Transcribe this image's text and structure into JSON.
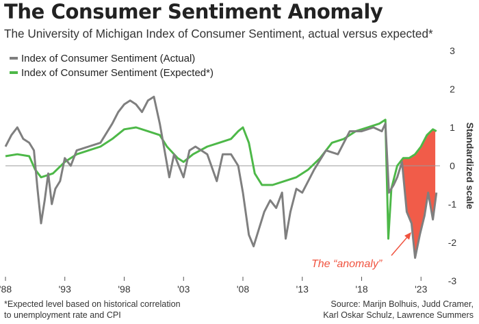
{
  "header": {
    "title": "The Consumer Sentiment Anomaly",
    "subtitle": "The University of Michigan Index of Consumer Sentiment, actual versus expected*"
  },
  "footer": {
    "note_line1": "*Expected level based on historical correlation",
    "note_line2": "to unemployment rate and CPI",
    "source_line1": "Source: Marijn Bolhuis, Judd Cramer,",
    "source_line2": "Karl Oskar Schulz, Lawrence Summers"
  },
  "colors": {
    "actual": "#7f7f7f",
    "expected": "#4db848",
    "anomaly": "#f0533f",
    "zero_line": "#9a9a9a",
    "text": "#222222"
  },
  "chart_data": {
    "type": "line",
    "title": "The Consumer Sentiment Anomaly",
    "subtitle": "The University of Michigan Index of Consumer Sentiment, actual versus expected*",
    "xlabel": "",
    "ylabel": "Standardized scale",
    "x_tick_labels": [
      "'88",
      "'93",
      "'98",
      "'03",
      "'08",
      "'13",
      "'18",
      "'23"
    ],
    "x_tick_years": [
      1988,
      1993,
      1998,
      2003,
      2008,
      2013,
      2018,
      2023
    ],
    "xlim": [
      1988,
      2024.6
    ],
    "ylim": [
      -3,
      3
    ],
    "y_ticks": [
      3,
      2,
      1,
      0,
      -1,
      -2,
      -3
    ],
    "y_axis_side": "right",
    "grid": false,
    "zero_line": true,
    "legend_position": "top-left",
    "annotation": {
      "text": "The “anomaly”",
      "shaded_region": [
        2021.3,
        2024.2
      ]
    },
    "series": [
      {
        "name": "Index of Consumer Sentiment (Actual)",
        "color": "#7f7f7f",
        "points": [
          [
            1988.0,
            0.5
          ],
          [
            1988.5,
            0.8
          ],
          [
            1989.0,
            1.0
          ],
          [
            1989.5,
            0.7
          ],
          [
            1990.0,
            0.6
          ],
          [
            1990.4,
            0.4
          ],
          [
            1990.7,
            -0.6
          ],
          [
            1991.0,
            -1.5
          ],
          [
            1991.3,
            -0.9
          ],
          [
            1991.6,
            -0.2
          ],
          [
            1991.9,
            -1.0
          ],
          [
            1992.2,
            -0.6
          ],
          [
            1992.6,
            -0.4
          ],
          [
            1993.0,
            0.2
          ],
          [
            1993.5,
            0.0
          ],
          [
            1994.0,
            0.4
          ],
          [
            1995.0,
            0.5
          ],
          [
            1996.0,
            0.6
          ],
          [
            1997.0,
            1.1
          ],
          [
            1997.5,
            1.4
          ],
          [
            1998.0,
            1.6
          ],
          [
            1998.5,
            1.7
          ],
          [
            1999.0,
            1.6
          ],
          [
            1999.5,
            1.4
          ],
          [
            2000.0,
            1.7
          ],
          [
            2000.5,
            1.8
          ],
          [
            2001.0,
            1.1
          ],
          [
            2001.4,
            0.4
          ],
          [
            2001.8,
            -0.3
          ],
          [
            2002.2,
            0.3
          ],
          [
            2002.6,
            0.0
          ],
          [
            2003.0,
            -0.3
          ],
          [
            2003.5,
            0.4
          ],
          [
            2004.0,
            0.5
          ],
          [
            2005.0,
            0.3
          ],
          [
            2005.8,
            -0.4
          ],
          [
            2006.3,
            0.3
          ],
          [
            2007.0,
            0.3
          ],
          [
            2007.6,
            0.0
          ],
          [
            2008.0,
            -0.7
          ],
          [
            2008.5,
            -1.8
          ],
          [
            2008.9,
            -2.1
          ],
          [
            2009.3,
            -1.7
          ],
          [
            2009.8,
            -1.2
          ],
          [
            2010.3,
            -0.9
          ],
          [
            2010.8,
            -1.1
          ],
          [
            2011.3,
            -0.7
          ],
          [
            2011.6,
            -1.9
          ],
          [
            2012.0,
            -1.2
          ],
          [
            2012.5,
            -0.6
          ],
          [
            2013.0,
            -0.7
          ],
          [
            2013.5,
            -0.4
          ],
          [
            2014.0,
            -0.1
          ],
          [
            2015.0,
            0.4
          ],
          [
            2016.0,
            0.3
          ],
          [
            2017.0,
            0.9
          ],
          [
            2018.0,
            0.9
          ],
          [
            2019.0,
            1.0
          ],
          [
            2019.7,
            0.9
          ],
          [
            2020.0,
            1.1
          ],
          [
            2020.3,
            -0.7
          ],
          [
            2020.7,
            -0.5
          ],
          [
            2021.0,
            -0.3
          ],
          [
            2021.4,
            0.1
          ],
          [
            2021.8,
            -1.2
          ],
          [
            2022.2,
            -1.5
          ],
          [
            2022.5,
            -2.4
          ],
          [
            2022.9,
            -1.8
          ],
          [
            2023.3,
            -1.3
          ],
          [
            2023.6,
            -0.7
          ],
          [
            2024.0,
            -1.4
          ],
          [
            2024.3,
            -0.7
          ]
        ]
      },
      {
        "name": "Index of Consumer Sentiment (Expected*)",
        "color": "#4db848",
        "points": [
          [
            1988.0,
            0.25
          ],
          [
            1989.0,
            0.3
          ],
          [
            1990.0,
            0.25
          ],
          [
            1990.5,
            -0.1
          ],
          [
            1991.0,
            -0.3
          ],
          [
            1992.0,
            -0.2
          ],
          [
            1993.0,
            0.1
          ],
          [
            1994.0,
            0.3
          ],
          [
            1995.0,
            0.4
          ],
          [
            1996.0,
            0.5
          ],
          [
            1997.0,
            0.7
          ],
          [
            1998.0,
            0.95
          ],
          [
            1999.0,
            1.0
          ],
          [
            2000.0,
            0.9
          ],
          [
            2001.0,
            0.8
          ],
          [
            2001.6,
            0.5
          ],
          [
            2002.5,
            0.2
          ],
          [
            2003.0,
            0.1
          ],
          [
            2003.8,
            0.3
          ],
          [
            2005.0,
            0.5
          ],
          [
            2006.0,
            0.6
          ],
          [
            2007.0,
            0.7
          ],
          [
            2007.6,
            0.9
          ],
          [
            2008.0,
            1.0
          ],
          [
            2008.5,
            0.6
          ],
          [
            2009.0,
            -0.2
          ],
          [
            2009.6,
            -0.5
          ],
          [
            2010.5,
            -0.5
          ],
          [
            2011.5,
            -0.4
          ],
          [
            2012.5,
            -0.3
          ],
          [
            2013.5,
            -0.1
          ],
          [
            2014.5,
            0.2
          ],
          [
            2015.5,
            0.6
          ],
          [
            2016.5,
            0.7
          ],
          [
            2017.5,
            0.9
          ],
          [
            2018.5,
            1.0
          ],
          [
            2019.5,
            1.1
          ],
          [
            2020.0,
            1.2
          ],
          [
            2020.25,
            -1.9
          ],
          [
            2020.5,
            -0.6
          ],
          [
            2021.0,
            0.0
          ],
          [
            2021.5,
            0.2
          ],
          [
            2022.0,
            0.2
          ],
          [
            2022.5,
            0.3
          ],
          [
            2023.0,
            0.5
          ],
          [
            2023.5,
            0.8
          ],
          [
            2024.0,
            0.95
          ],
          [
            2024.3,
            0.9
          ]
        ]
      }
    ]
  }
}
